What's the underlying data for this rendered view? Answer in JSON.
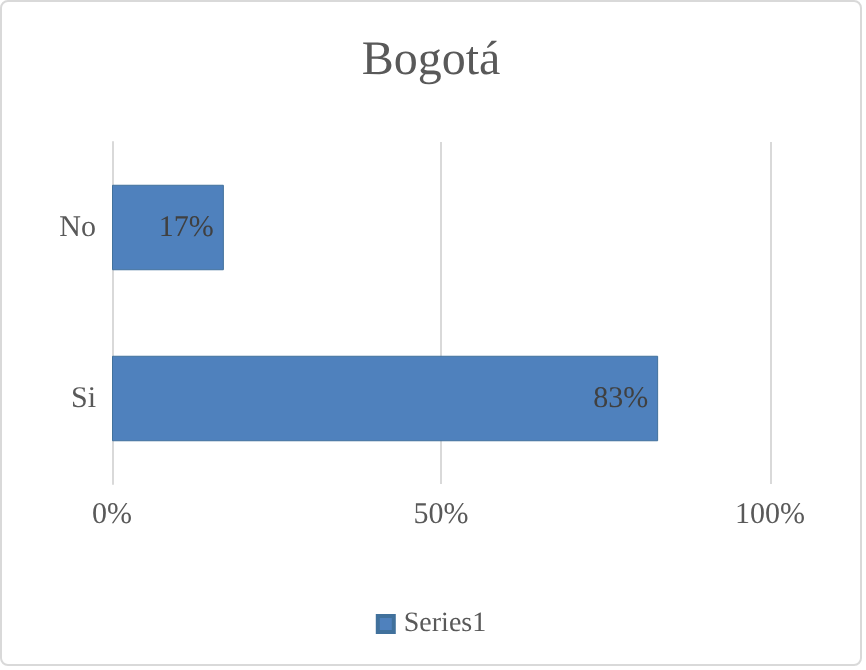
{
  "chart_data": {
    "type": "bar",
    "title": "Bogotá",
    "orientation": "horizontal",
    "categories": [
      "No",
      "Si"
    ],
    "series": [
      {
        "name": "Series1",
        "color": "#4f81bd",
        "values": [
          17,
          83
        ],
        "value_labels": [
          "17%",
          "83%"
        ]
      }
    ],
    "xlim": [
      0,
      100
    ],
    "xticks": [
      {
        "value": 0,
        "label": "0%"
      },
      {
        "value": 50,
        "label": "50%"
      },
      {
        "value": 100,
        "label": "100%"
      }
    ],
    "grid": "x",
    "legend": "bottom"
  }
}
